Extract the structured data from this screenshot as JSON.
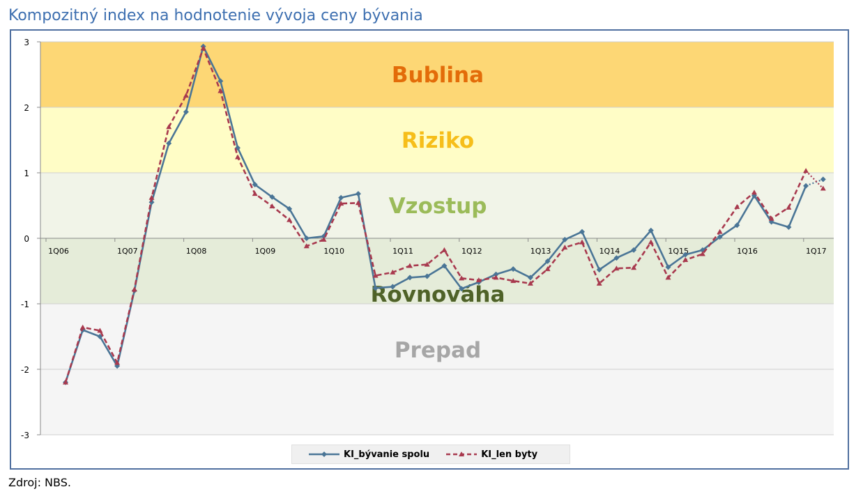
{
  "title": "Kompozitný index na hodnotenie vývoja ceny bývania",
  "source": "Zdroj: NBS.",
  "colors": {
    "bublina_band": "#fdd775",
    "riziko_band": "#fffdc6",
    "vzostup_band": "#f1f4e8",
    "rovnovaha_band": "#e5ecd9",
    "prepad_band": "#f5f5f5",
    "bublina_text": "#e36c09",
    "riziko_text": "#f6be1a",
    "vzostup_text": "#9bbb59",
    "rovnovaha_text": "#4f6228",
    "prepad_text": "#a6a6a6",
    "series1": "#4a7596",
    "series2": "#a8394e"
  },
  "chart_data": {
    "type": "line",
    "title": "Kompozitný index na hodnotenie vývoja ceny bývania",
    "xlabel": "",
    "ylabel": "",
    "ylim": [
      -3,
      3
    ],
    "yticks": [
      -3,
      -2,
      -1,
      0,
      1,
      2,
      3
    ],
    "x_tick_labels": [
      "1Q06",
      "1Q07",
      "1Q08",
      "1Q09",
      "1Q10",
      "1Q11",
      "1Q12",
      "1Q13",
      "1Q14",
      "1Q15",
      "1Q16",
      "1Q17"
    ],
    "zones": [
      {
        "label": "Bublina",
        "from": 2,
        "to": 3
      },
      {
        "label": "Riziko",
        "from": 1,
        "to": 2
      },
      {
        "label": "Vzostup",
        "from": 0,
        "to": 1
      },
      {
        "label": "Rovnováha",
        "from": -1,
        "to": 0
      },
      {
        "label": "Prepad",
        "from": -3,
        "to": -1
      }
    ],
    "legend_position": "bottom",
    "series": [
      {
        "name": "KI_bývanie spolu",
        "style": "solid",
        "values": [
          -2.2,
          -1.4,
          -1.5,
          -1.95,
          -0.8,
          0.55,
          1.45,
          1.93,
          2.93,
          2.4,
          1.38,
          0.82,
          0.63,
          0.45,
          0.0,
          0.03,
          0.62,
          0.68,
          -0.76,
          -0.74,
          -0.6,
          -0.58,
          -0.42,
          -0.77,
          -0.67,
          -0.55,
          -0.47,
          -0.6,
          -0.35,
          -0.02,
          0.1,
          -0.48,
          -0.3,
          -0.18,
          0.12,
          -0.44,
          -0.25,
          -0.18,
          0.02,
          0.2,
          0.65,
          0.25,
          0.17,
          0.8,
          0.9
        ],
        "dotted_from_index": 43
      },
      {
        "name": "KI_len byty",
        "style": "dashed",
        "values": [
          -2.2,
          -1.36,
          -1.41,
          -1.9,
          -0.78,
          0.62,
          1.7,
          2.18,
          2.9,
          2.25,
          1.24,
          0.68,
          0.49,
          0.28,
          -0.12,
          -0.02,
          0.53,
          0.54,
          -0.57,
          -0.52,
          -0.42,
          -0.4,
          -0.18,
          -0.61,
          -0.64,
          -0.6,
          -0.65,
          -0.69,
          -0.47,
          -0.14,
          -0.06,
          -0.69,
          -0.46,
          -0.45,
          -0.06,
          -0.6,
          -0.33,
          -0.24,
          0.1,
          0.48,
          0.7,
          0.3,
          0.47,
          1.03,
          0.76
        ],
        "dotted_from_index": 43
      }
    ]
  }
}
